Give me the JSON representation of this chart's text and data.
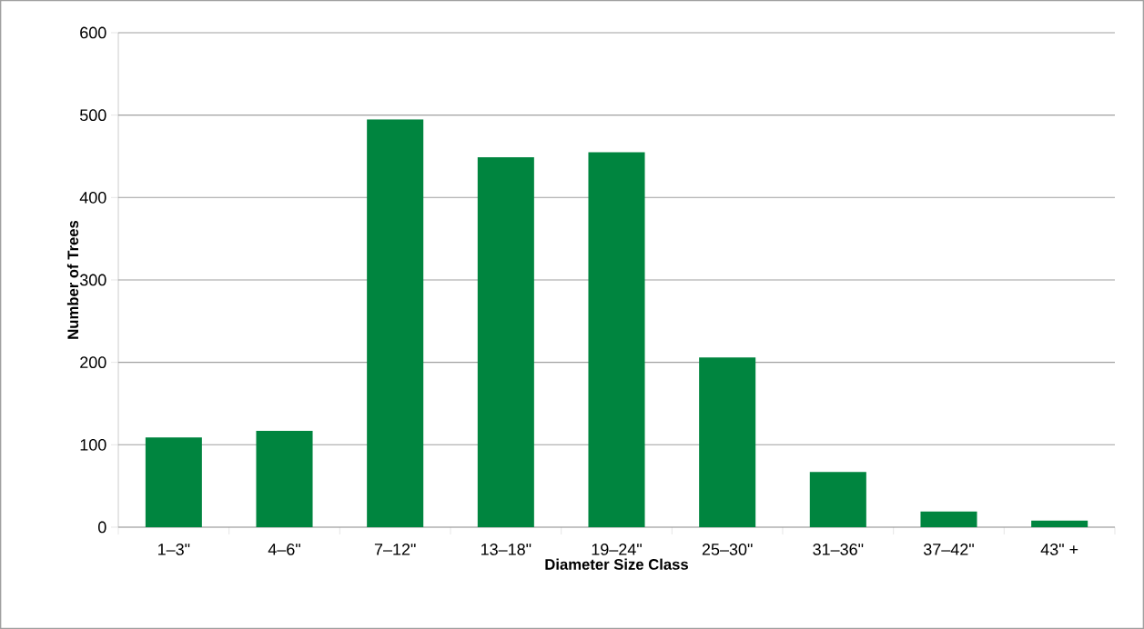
{
  "chart_data": {
    "type": "bar",
    "xlabel": "Diameter Size Class",
    "ylabel": "Number of Trees",
    "categories": [
      "1–3\"",
      "4–6\"",
      "7–12\"",
      "13–18\"",
      "19–24\"",
      "25–30\"",
      "31–36\"",
      "37–42\"",
      "43\" +"
    ],
    "values": [
      109,
      117,
      495,
      449,
      455,
      206,
      67,
      19,
      8
    ],
    "color": "#00853f",
    "ylim": [
      0,
      600
    ],
    "yticks": [
      0,
      100,
      200,
      300,
      400,
      500,
      600
    ],
    "grid": "y"
  }
}
